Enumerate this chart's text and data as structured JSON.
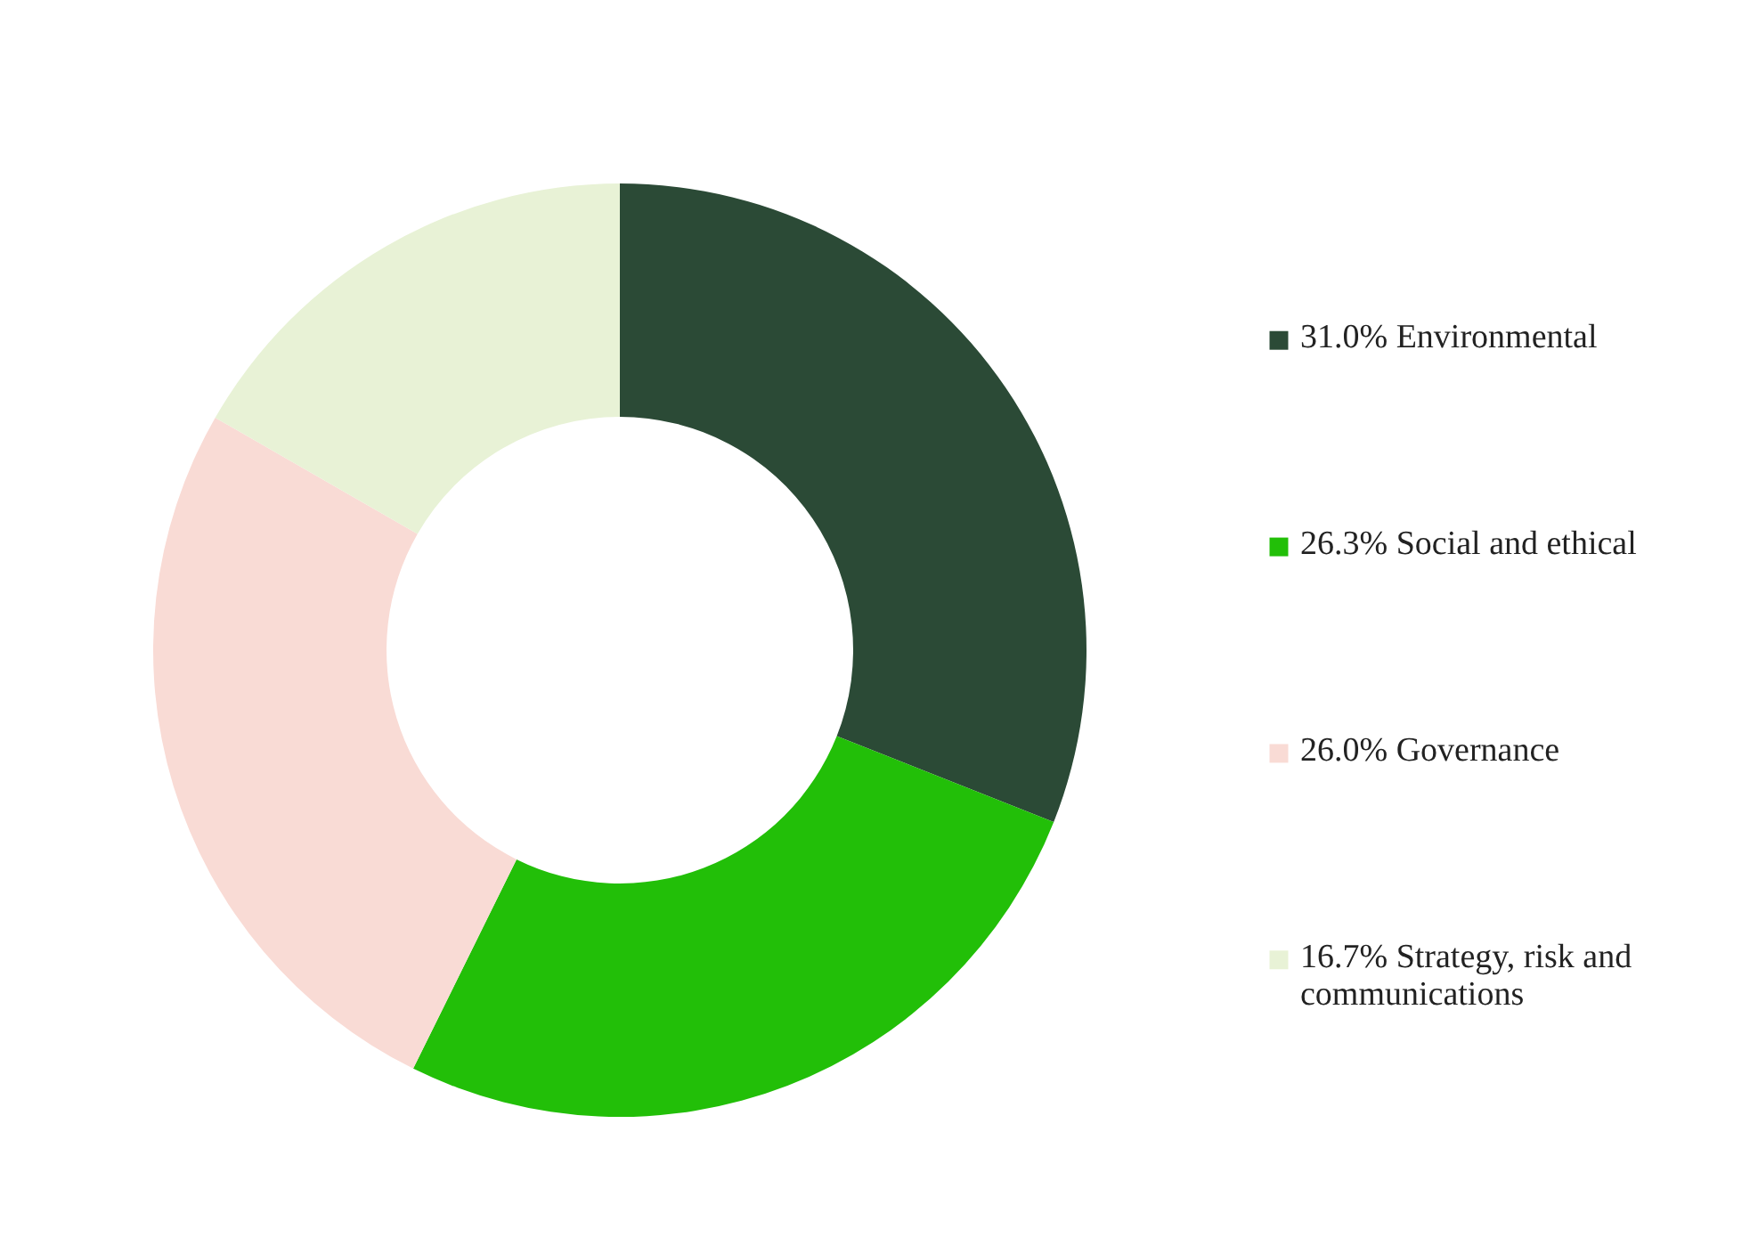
{
  "chart_data": {
    "type": "donut",
    "categories": [
      "Environmental",
      "Social and ethical",
      "Governance",
      "Strategy, risk and communications"
    ],
    "values": [
      31.0,
      26.3,
      26.0,
      16.7
    ],
    "value_labels": [
      "31.0%",
      "26.3%",
      "26.0%",
      "16.7%"
    ],
    "colors": [
      "#2b4a36",
      "#22bf08",
      "#f9dbd5",
      "#e8f2d6"
    ],
    "legend": "right"
  }
}
